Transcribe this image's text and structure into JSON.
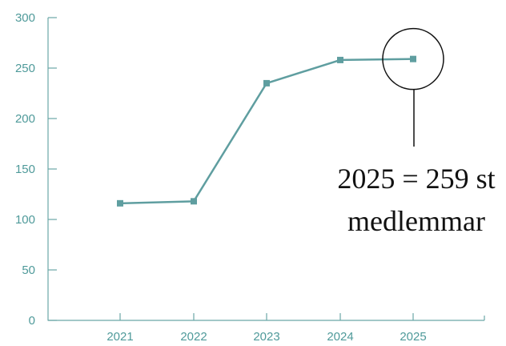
{
  "chart_data": {
    "type": "line",
    "x": [
      "2021",
      "2022",
      "2023",
      "2024",
      "2025"
    ],
    "series": [
      {
        "values": [
          116,
          118,
          235,
          258,
          259
        ]
      }
    ],
    "ylim": [
      0,
      300
    ],
    "yticks": [
      0,
      50,
      100,
      150,
      200,
      250,
      300
    ],
    "title": "",
    "xlabel": "",
    "ylabel": "",
    "grid": false,
    "annotation": {
      "target_index": 4,
      "lines": [
        "2025 = 259 st",
        "medlemmar"
      ]
    }
  },
  "colors": {
    "series": "#5f9ea0",
    "axis": "#6aa7a7",
    "tick_label": "#4f9a9a",
    "annotation": "#111111"
  }
}
